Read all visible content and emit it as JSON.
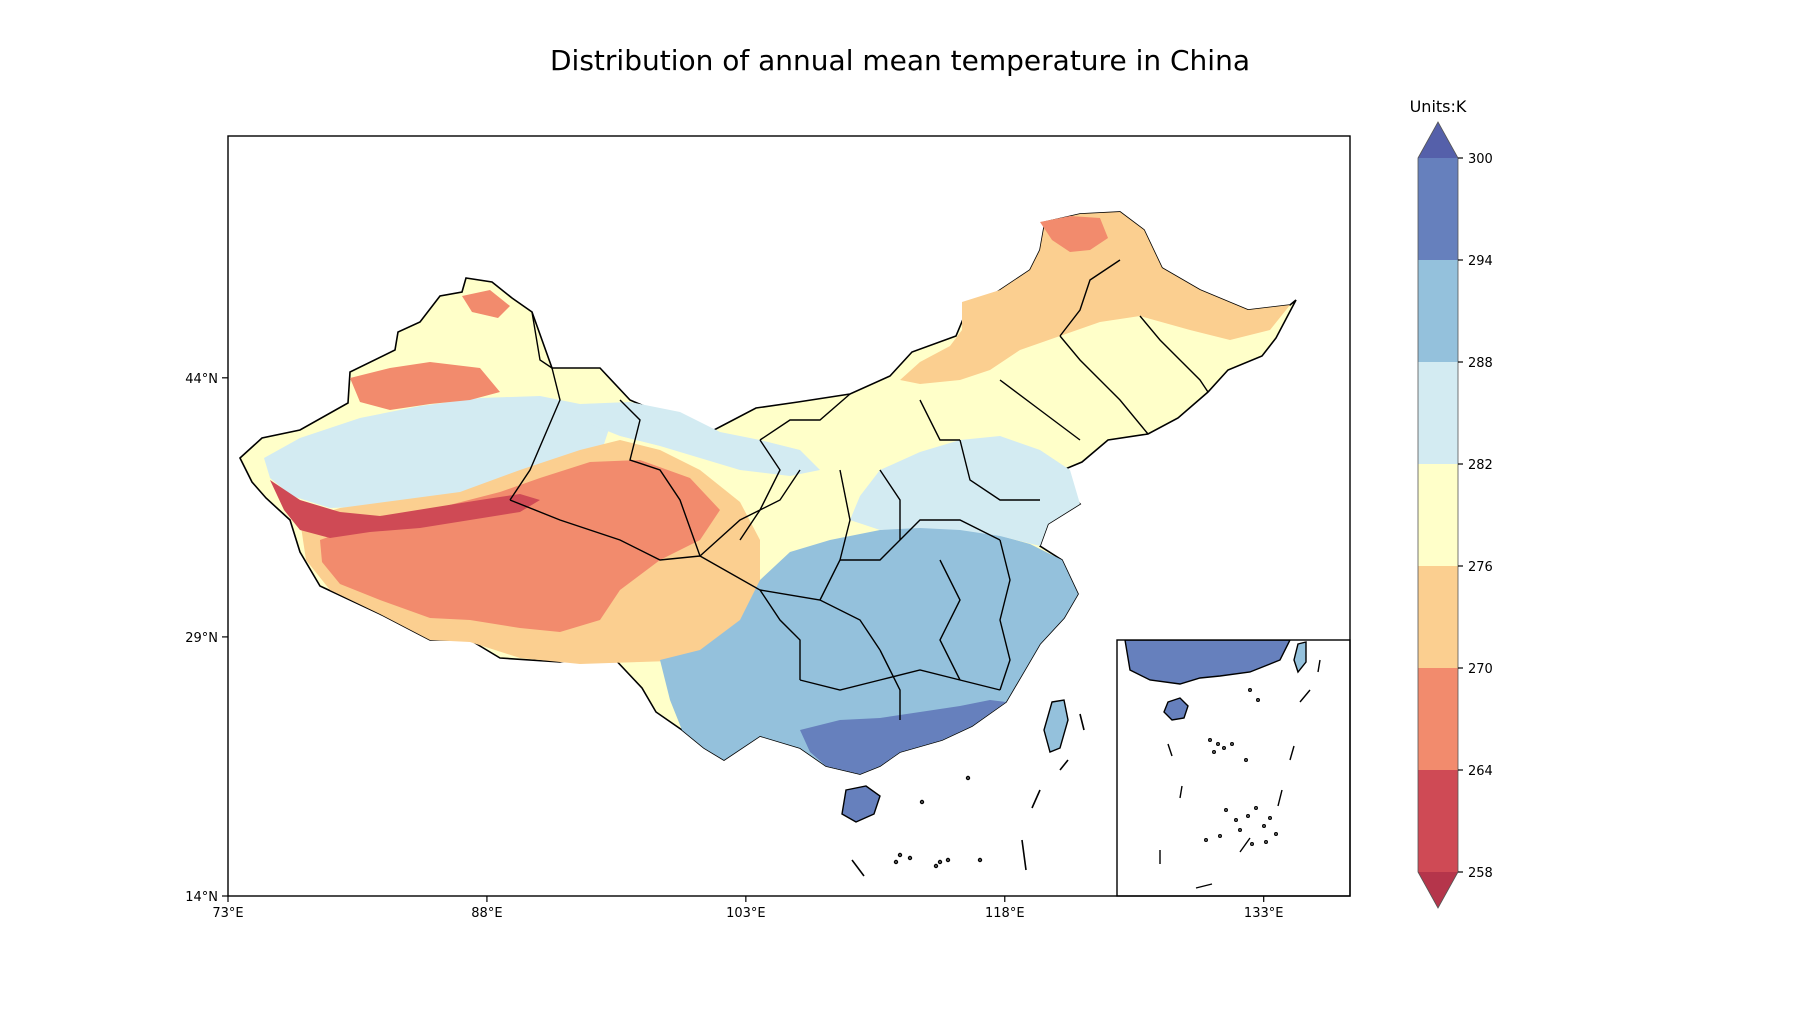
{
  "title": "Distribution of annual mean temperature in China",
  "colorbar": {
    "units_label": "Units:K",
    "levels": [
      258,
      264,
      270,
      276,
      282,
      288,
      294,
      300
    ],
    "colors": [
      "#cf4a55",
      "#f28b6d",
      "#fbcf90",
      "#ffffc9",
      "#d3ebf2",
      "#94c1dc",
      "#6680bd"
    ],
    "under_color": "#b5354b",
    "over_color": "#5560aa",
    "tick_labels": [
      "258",
      "264",
      "270",
      "276",
      "282",
      "288",
      "294",
      "300"
    ]
  },
  "map": {
    "x_ticks": [
      "73°E",
      "88°E",
      "103°E",
      "118°E",
      "133°E"
    ],
    "y_ticks": [
      "44°N",
      "29°N",
      "14°N"
    ],
    "lon_range": [
      73,
      138
    ],
    "lat_range": [
      14,
      58
    ],
    "x_tick_values": [
      73,
      88,
      103,
      118,
      133
    ],
    "y_tick_values": [
      44,
      29,
      14
    ],
    "colors": {
      "deep_red": "#cf4a55",
      "orange": "#f28b6d",
      "peach": "#fbcf90",
      "pale_yellow": "#ffffc9",
      "light_blue": "#d3ebf2",
      "mid_blue": "#94c1dc",
      "dark_blue": "#6680bd",
      "border": "#000000"
    }
  }
}
